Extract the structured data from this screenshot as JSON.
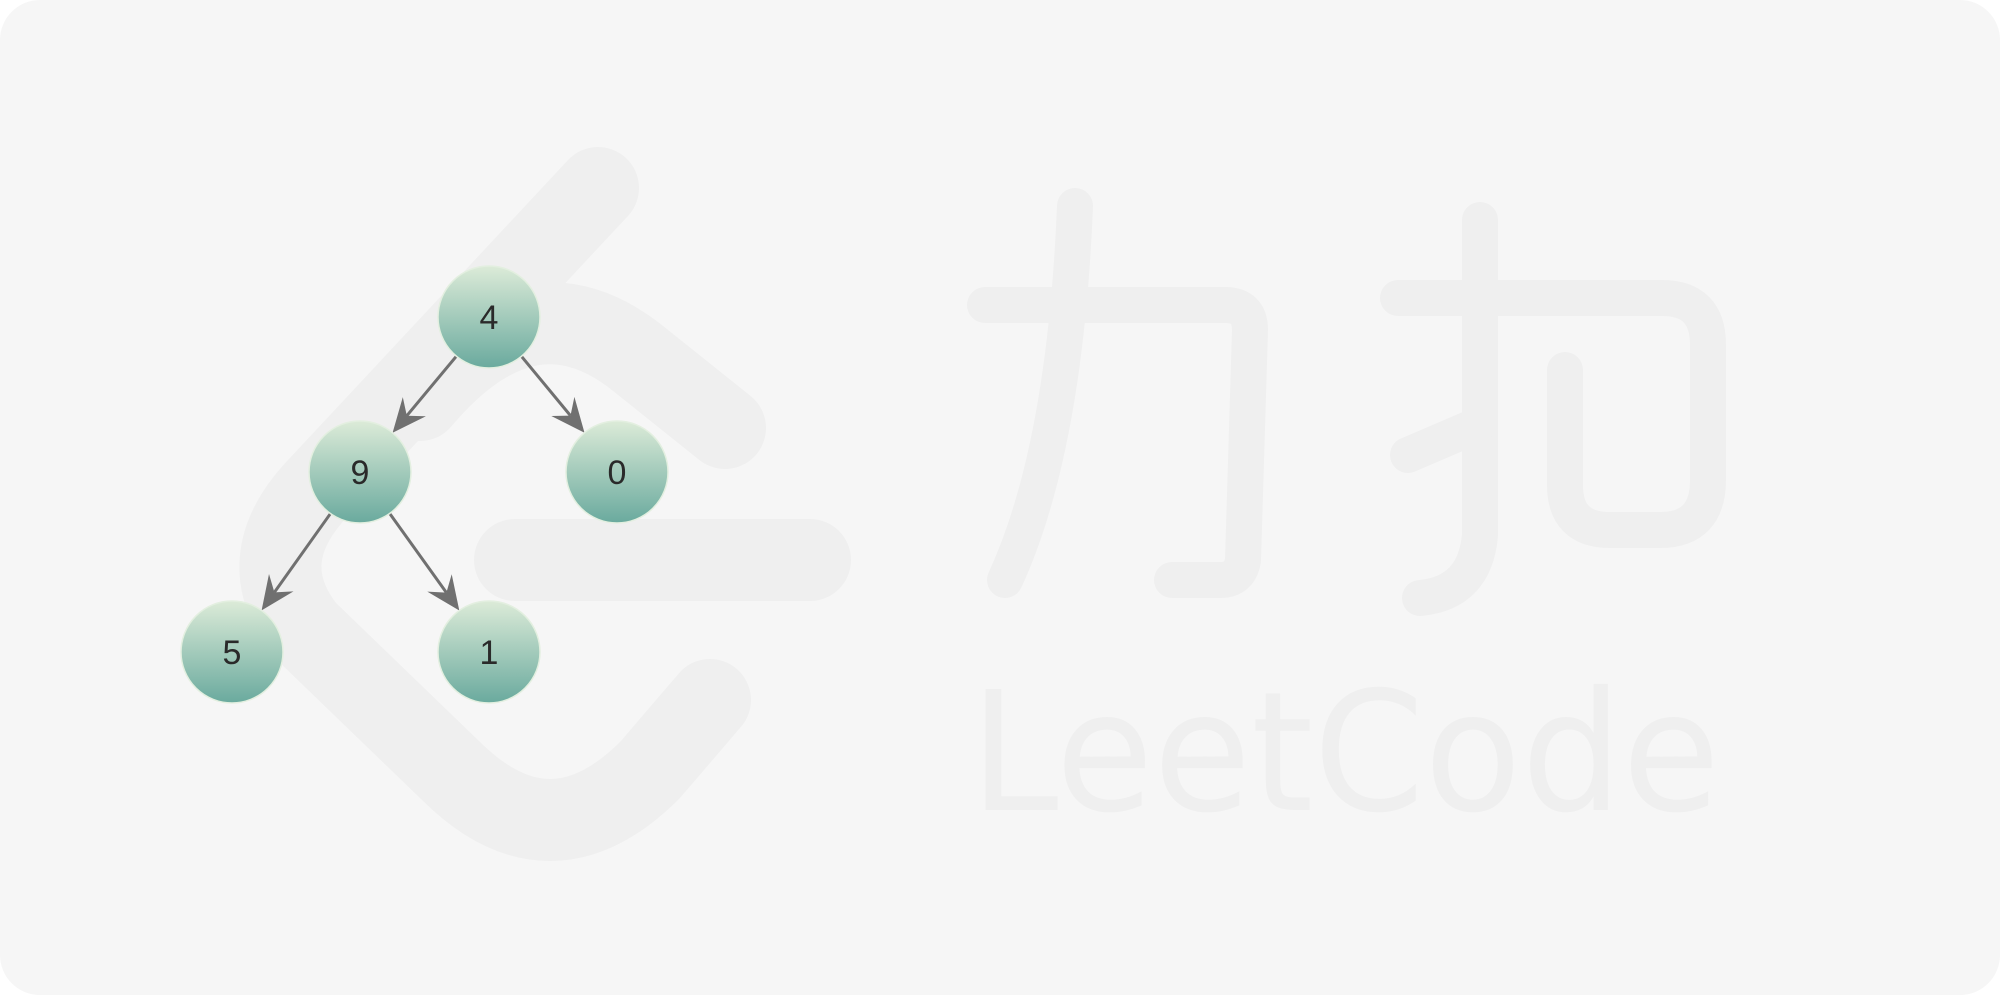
{
  "watermark": {
    "brand_cn": "力扣",
    "brand_en": "LeetCode"
  },
  "tree": {
    "nodes": [
      {
        "id": "n4",
        "label": "4"
      },
      {
        "id": "n9",
        "label": "9"
      },
      {
        "id": "n0",
        "label": "0"
      },
      {
        "id": "n5",
        "label": "5"
      },
      {
        "id": "n1",
        "label": "1"
      }
    ],
    "edges": [
      {
        "from": "n4",
        "to": "n9"
      },
      {
        "from": "n4",
        "to": "n0"
      },
      {
        "from": "n9",
        "to": "n5"
      },
      {
        "from": "n9",
        "to": "n1"
      }
    ],
    "colors": {
      "node_top": "#dcebd8",
      "node_bottom": "#6aaa9e",
      "edge": "#707070",
      "label": "#2a2a2a",
      "watermark": "#efefef"
    }
  }
}
